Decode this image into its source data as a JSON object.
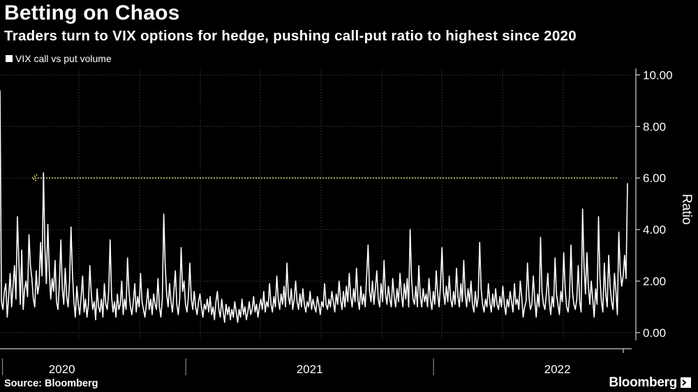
{
  "header": {
    "title": "Betting on Chaos",
    "subtitle": "Traders turn to VIX options for hedge, pushing call-put ratio to highest since 2020"
  },
  "footer": {
    "source": "Source: Bloomberg",
    "brand": "Bloomberg"
  },
  "colors": {
    "background": "#000000",
    "line": "#ffffff",
    "grid": "#555555",
    "reference": "#e8e07a"
  },
  "chart_data": {
    "type": "line",
    "title": "Betting on Chaos",
    "subtitle": "Traders turn to VIX options for hedge, pushing call-put ratio to highest since 2020",
    "ylabel": "Ratio",
    "xlabel": "",
    "legend": "top-left",
    "ylim": [
      -0.3,
      10.2
    ],
    "yticks": [
      0,
      2,
      4,
      6,
      8,
      10
    ],
    "ytick_labels": [
      "0.00",
      "2.00",
      "4.00",
      "6.00",
      "8.00",
      "10.00"
    ],
    "x_range": [
      2019.75,
      2022.3
    ],
    "xtick_labels": [
      {
        "label": "2020",
        "at": 2020.0
      },
      {
        "label": "2021",
        "at": 2021.0
      },
      {
        "label": "2022",
        "at": 2022.0
      }
    ],
    "year_boundaries": [
      2019.76,
      2020.5,
      2021.5
    ],
    "annotation": {
      "type": "reference-line",
      "value": 6.0,
      "x_start": 2019.88,
      "x_end": 2022.24,
      "style": "dotted-arrow"
    },
    "series": [
      {
        "name": "VIX call vs put volume",
        "x_start": 2019.75,
        "x_end": 2022.3,
        "values": [
          9.4,
          1.2,
          0.9,
          1.6,
          1.9,
          0.6,
          1.4,
          2.3,
          1.0,
          1.8,
          2.6,
          1.3,
          4.5,
          2.8,
          1.1,
          3.2,
          0.9,
          1.7,
          2.0,
          1.4,
          3.8,
          2.6,
          2.1,
          1.3,
          1.0,
          2.4,
          1.5,
          1.9,
          3.5,
          2.2,
          6.2,
          3.3,
          1.9,
          4.2,
          2.4,
          1.3,
          2.1,
          1.6,
          2.8,
          1.2,
          0.9,
          1.9,
          3.6,
          1.7,
          1.1,
          2.5,
          1.4,
          1.0,
          2.0,
          4.1,
          2.3,
          1.2,
          0.6,
          1.8,
          1.1,
          0.7,
          1.4,
          2.2,
          0.8,
          1.3,
          0.6,
          1.1,
          2.6,
          1.5,
          0.9,
          1.2,
          0.5,
          1.7,
          1.0,
          0.8,
          1.3,
          0.6,
          1.9,
          1.1,
          0.9,
          1.6,
          3.6,
          1.4,
          0.8,
          1.2,
          0.6,
          1.5,
          0.9,
          1.1,
          2.0,
          0.7,
          1.3,
          0.9,
          2.9,
          1.6,
          1.0,
          0.7,
          1.2,
          1.9,
          0.8,
          1.4,
          1.0,
          2.3,
          1.2,
          0.9,
          0.6,
          1.1,
          1.7,
          0.9,
          1.3,
          0.7,
          1.5,
          1.1,
          0.9,
          2.1,
          1.0,
          0.6,
          1.3,
          4.6,
          2.6,
          1.5,
          1.0,
          1.9,
          1.2,
          0.8,
          1.6,
          2.4,
          1.1,
          0.7,
          1.3,
          3.3,
          1.6,
          2.0,
          1.1,
          0.8,
          1.4,
          2.7,
          1.3,
          0.9,
          1.6,
          1.0,
          0.7,
          1.2,
          1.5,
          1.0,
          0.6,
          1.1,
          0.9,
          1.3,
          0.8,
          1.4,
          0.7,
          1.0,
          0.5,
          1.2,
          1.6,
          0.9,
          0.6,
          1.3,
          0.8,
          0.4,
          1.1,
          0.7,
          1.0,
          0.5,
          0.9,
          0.6,
          1.2,
          0.8,
          0.4,
          0.9,
          0.6,
          1.3,
          0.7,
          1.0,
          0.5,
          0.8,
          1.2,
          0.7,
          0.9,
          1.4,
          0.8,
          1.1,
          0.6,
          1.0,
          1.3,
          0.9,
          1.6,
          0.8,
          1.2,
          1.0,
          1.9,
          1.1,
          0.8,
          1.4,
          1.0,
          2.2,
          1.3,
          0.9,
          1.5,
          1.1,
          1.8,
          1.0,
          2.7,
          1.4,
          1.1,
          1.7,
          0.9,
          1.3,
          2.0,
          1.2,
          0.9,
          1.5,
          1.0,
          1.7,
          1.1,
          0.8,
          1.2,
          1.0,
          1.6,
          0.9,
          1.3,
          1.0,
          0.8,
          1.4,
          1.1,
          0.7,
          1.2,
          1.0,
          1.9,
          1.1,
          0.9,
          1.3,
          1.0,
          1.6,
          1.2,
          0.8,
          1.5,
          1.1,
          2.0,
          1.3,
          0.9,
          1.6,
          1.0,
          1.8,
          1.2,
          2.3,
          1.4,
          1.0,
          1.7,
          1.2,
          2.5,
          1.3,
          0.9,
          1.8,
          1.1,
          1.5,
          1.0,
          2.2,
          3.4,
          1.6,
          1.2,
          2.0,
          1.1,
          1.7,
          2.4,
          1.3,
          1.0,
          1.9,
          1.2,
          2.8,
          1.5,
          1.1,
          1.8,
          1.3,
          1.0,
          2.1,
          1.4,
          1.0,
          1.7,
          1.2,
          2.3,
          1.5,
          1.0,
          1.9,
          1.3,
          2.1,
          1.0,
          4.0,
          2.1,
          1.3,
          1.1,
          1.8,
          1.0,
          2.6,
          1.4,
          1.0,
          1.7,
          1.2,
          1.5,
          1.0,
          2.1,
          1.3,
          0.9,
          1.6,
          1.1,
          2.4,
          1.5,
          1.0,
          1.9,
          3.3,
          1.6,
          1.1,
          1.8,
          1.2,
          2.2,
          1.3,
          1.0,
          1.6,
          1.1,
          2.5,
          1.4,
          1.0,
          1.9,
          1.2,
          2.8,
          1.5,
          1.0,
          1.7,
          1.2,
          2.0,
          1.1,
          0.8,
          1.6,
          1.0,
          1.4,
          3.5,
          1.7,
          1.1,
          0.8,
          1.3,
          1.0,
          1.9,
          1.2,
          0.8,
          1.5,
          1.0,
          1.7,
          1.1,
          0.9,
          1.4,
          1.0,
          1.8,
          1.1,
          0.7,
          1.3,
          1.0,
          1.6,
          1.2,
          0.8,
          1.9,
          1.1,
          1.3,
          0.9,
          2.0,
          1.4,
          0.6,
          1.0,
          1.2,
          2.7,
          1.4,
          0.9,
          1.1,
          2.2,
          1.3,
          0.6,
          1.5,
          1.0,
          3.7,
          1.6,
          1.1,
          0.9,
          1.5,
          2.3,
          1.2,
          0.7,
          1.4,
          1.0,
          2.9,
          1.5,
          1.1,
          0.7,
          1.6,
          1.2,
          3.1,
          1.7,
          1.0,
          0.8,
          1.4,
          3.4,
          1.6,
          1.1,
          0.9,
          1.3,
          2.6,
          1.2,
          0.8,
          4.8,
          2.6,
          1.5,
          3.1,
          1.8,
          1.1,
          2.0,
          1.3,
          0.6,
          1.7,
          1.1,
          4.5,
          2.1,
          1.2,
          0.8,
          2.7,
          1.5,
          1.0,
          3.0,
          1.8,
          1.2,
          0.9,
          2.3,
          1.6,
          0.7,
          3.9,
          2.4,
          1.8,
          2.2,
          3.0,
          2.1,
          5.8
        ]
      }
    ]
  }
}
